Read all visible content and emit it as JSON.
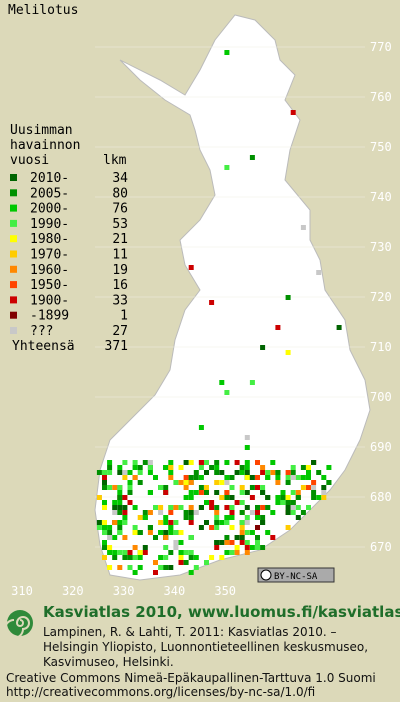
{
  "title": "Melilotus",
  "legend": {
    "heading": [
      "Uusimman",
      "havainnon",
      "vuosi"
    ],
    "count_heading": "lkm",
    "rows": [
      {
        "label": "2010-",
        "count": "34",
        "color": "#006400"
      },
      {
        "label": "2005-",
        "count": "80",
        "color": "#009000"
      },
      {
        "label": "2000-",
        "count": "76",
        "color": "#00c800"
      },
      {
        "label": "1990-",
        "count": "53",
        "color": "#44ee44"
      },
      {
        "label": "1980-",
        "count": "21",
        "color": "#ffff00"
      },
      {
        "label": "1970-",
        "count": "11",
        "color": "#ffcc00"
      },
      {
        "label": "1960-",
        "count": "19",
        "color": "#ff8800"
      },
      {
        "label": "1950-",
        "count": "16",
        "color": "#ff4400"
      },
      {
        "label": "1900-",
        "count": "33",
        "color": "#cc0000"
      },
      {
        "label": "-1899",
        "count": "1",
        "color": "#800000"
      },
      {
        "label": "???",
        "count": "27",
        "color": "#c8c8c8"
      }
    ],
    "total_label": "Yhteensä",
    "total": "371"
  },
  "y_labels": [
    770,
    760,
    750,
    740,
    730,
    720,
    710,
    700,
    690,
    680,
    670
  ],
  "x_labels": [
    310,
    320,
    330,
    340,
    350
  ],
  "license_badge": "BY-NC-SA",
  "footer": {
    "heading": "Kasviatlas 2010, www.luomus.fi/kasviatlas",
    "citation": [
      "Lampinen, R. & Lahti, T. 2011: Kasviatlas 2010. –",
      "Helsingin Yliopisto, Luonnontieteellinen keskusmuseo,",
      "Kasvimuseo, Helsinki."
    ],
    "license": [
      "Creative Commons Nimeä-Epäkaupallinen-Tarttuva 1.0 Suomi",
      "http://creativecommons.org/licenses/by-nc-sa/1.0/fi"
    ]
  }
}
